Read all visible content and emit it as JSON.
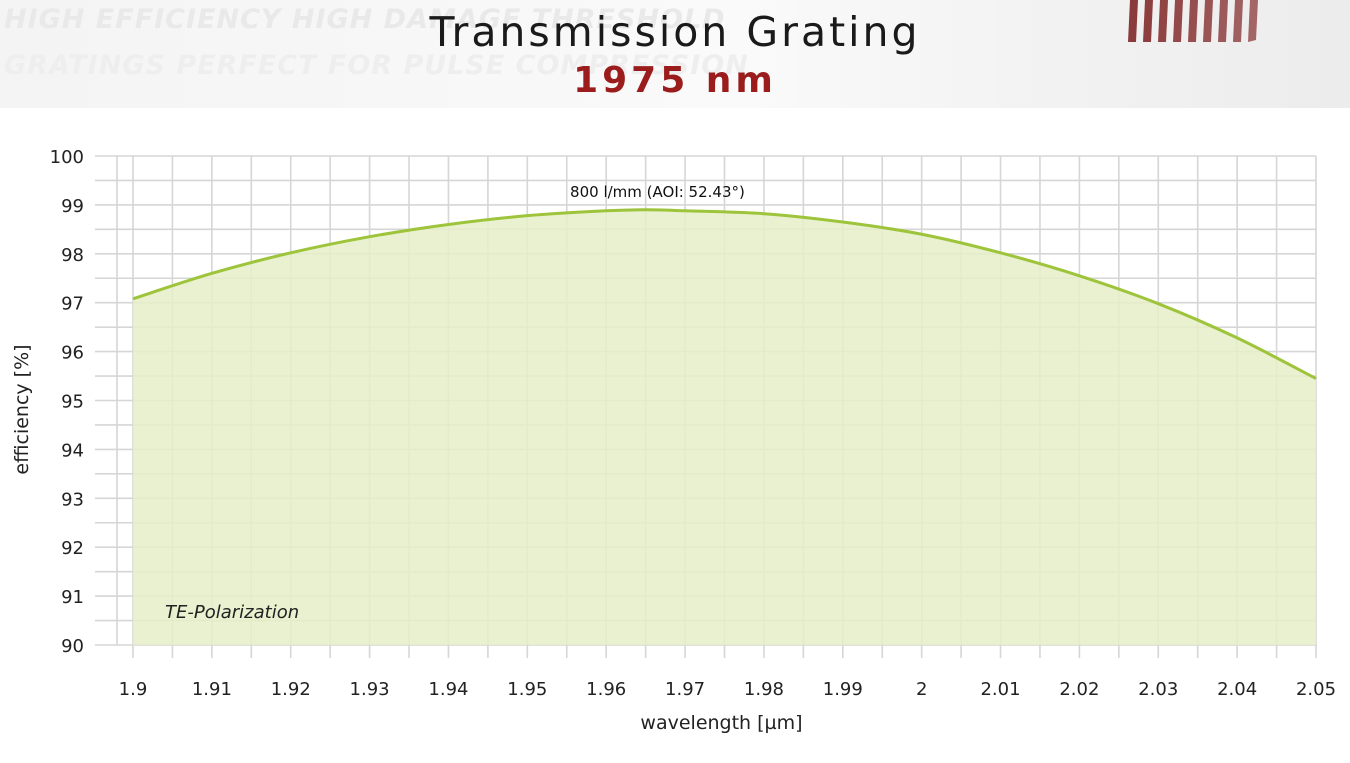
{
  "header": {
    "title": "Transmission Grating",
    "subtitle": "1975 nm",
    "background_text_line1": "HIGH EFFICIENCY HIGH DAMAGE THRESHOLD",
    "background_text_line2": "GRATINGS PERFECT FOR PULSE COMPRESSION"
  },
  "colors": {
    "curve": "#9dc43a",
    "fill": "#e6efc8",
    "grid": "#d6d6d6",
    "subtitle": "#9b1c1c"
  },
  "chart_data": {
    "type": "area",
    "title": "Transmission Grating",
    "subtitle": "1975 nm",
    "xlabel": "wavelength [µm]",
    "ylabel": "efficiency [%]",
    "xlim": [
      1.9,
      2.05
    ],
    "ylim": [
      90,
      100
    ],
    "x_ticks": [
      "1.9",
      "1.91",
      "1.92",
      "1.93",
      "1.94",
      "1.95",
      "1.96",
      "1.97",
      "1.98",
      "1.99",
      "2",
      "2.01",
      "2.02",
      "2.03",
      "2.04",
      "2.05"
    ],
    "y_ticks": [
      "100",
      "99",
      "98",
      "97",
      "96",
      "95",
      "94",
      "93",
      "92",
      "91",
      "90"
    ],
    "grid": true,
    "series": [
      {
        "name": "800 l/mm (AOI: 52.43°)",
        "x": [
          1.9,
          1.91,
          1.92,
          1.93,
          1.94,
          1.95,
          1.96,
          1.965,
          1.97,
          1.98,
          1.99,
          2.0,
          2.01,
          2.02,
          2.03,
          2.04,
          2.05
        ],
        "values": [
          97.08,
          97.6,
          98.02,
          98.35,
          98.6,
          98.78,
          98.88,
          98.9,
          98.88,
          98.82,
          98.65,
          98.4,
          98.02,
          97.55,
          96.98,
          96.28,
          95.45
        ]
      }
    ],
    "annotations": [
      "800 l/mm (AOI: 52.43°)",
      "TE-Polarization"
    ]
  }
}
